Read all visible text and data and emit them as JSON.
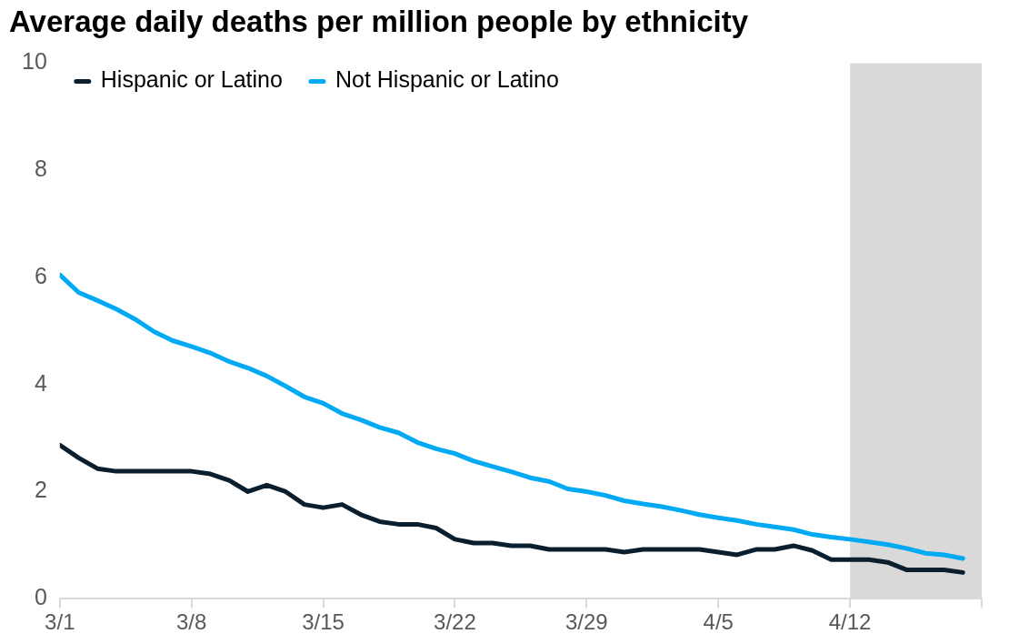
{
  "chart_data": {
    "type": "line",
    "title": "Average daily deaths per million people by ethnicity",
    "x": [
      "--03-01",
      "--03-02",
      "--03-03",
      "--03-04",
      "--03-05",
      "--03-06",
      "--03-07",
      "--03-08",
      "--03-09",
      "--03-10",
      "--03-11",
      "--03-12",
      "--03-13",
      "--03-14",
      "--03-15",
      "--03-16",
      "--03-17",
      "--03-18",
      "--03-19",
      "--03-20",
      "--03-21",
      "--03-22",
      "--03-23",
      "--03-24",
      "--03-25",
      "--03-26",
      "--03-27",
      "--03-28",
      "--03-29",
      "--03-30",
      "--03-31",
      "--04-01",
      "--04-02",
      "--04-03",
      "--04-04",
      "--04-05",
      "--04-06",
      "--04-07",
      "--04-08",
      "--04-09",
      "--04-10",
      "--04-11",
      "--04-12",
      "--04-13",
      "--04-14",
      "--04-15",
      "--04-16",
      "--04-17",
      "--04-18"
    ],
    "series": [
      {
        "name": "Hispanic or Latino",
        "color": "#0a1e2e",
        "values": [
          2.87,
          2.63,
          2.43,
          2.38,
          2.38,
          2.38,
          2.38,
          2.38,
          2.33,
          2.21,
          2.0,
          2.12,
          2.0,
          1.76,
          1.7,
          1.76,
          1.57,
          1.44,
          1.39,
          1.39,
          1.32,
          1.11,
          1.04,
          1.04,
          0.99,
          0.99,
          0.92,
          0.92,
          0.92,
          0.92,
          0.87,
          0.92,
          0.92,
          0.92,
          0.92,
          0.87,
          0.82,
          0.92,
          0.92,
          0.99,
          0.9,
          0.73,
          0.73,
          0.73,
          0.68,
          0.54,
          0.54,
          0.54,
          0.49
        ]
      },
      {
        "name": "Not Hispanic or Latino",
        "color": "#00a9f4",
        "values": [
          6.05,
          5.72,
          5.57,
          5.41,
          5.22,
          4.99,
          4.82,
          4.71,
          4.59,
          4.43,
          4.31,
          4.16,
          3.97,
          3.77,
          3.65,
          3.46,
          3.34,
          3.2,
          3.1,
          2.92,
          2.8,
          2.71,
          2.57,
          2.47,
          2.37,
          2.26,
          2.19,
          2.05,
          2.0,
          1.93,
          1.83,
          1.77,
          1.72,
          1.65,
          1.57,
          1.51,
          1.46,
          1.39,
          1.34,
          1.29,
          1.2,
          1.15,
          1.11,
          1.06,
          1.01,
          0.94,
          0.85,
          0.82,
          0.75
        ]
      }
    ],
    "xlim": [
      "--03-01",
      "--04-19"
    ],
    "xticks": [
      {
        "value": "--03-01",
        "label": "3/1"
      },
      {
        "value": "--03-08",
        "label": "3/8"
      },
      {
        "value": "--03-15",
        "label": "3/15"
      },
      {
        "value": "--03-22",
        "label": "3/22"
      },
      {
        "value": "--03-29",
        "label": "3/29"
      },
      {
        "value": "--04-05",
        "label": "4/5"
      },
      {
        "value": "--04-12",
        "label": "4/12"
      },
      {
        "value": "--04-19",
        "label": null
      }
    ],
    "ylim": [
      0,
      10
    ],
    "yticks": [
      0,
      2,
      4,
      6,
      8,
      10
    ],
    "bands": [
      {
        "axis": "x",
        "from": "--04-12",
        "to": "--04-19",
        "color": "#d9d9d9"
      }
    ],
    "grid": false,
    "legend": "top left",
    "marker": "none",
    "line_style": "solid"
  }
}
